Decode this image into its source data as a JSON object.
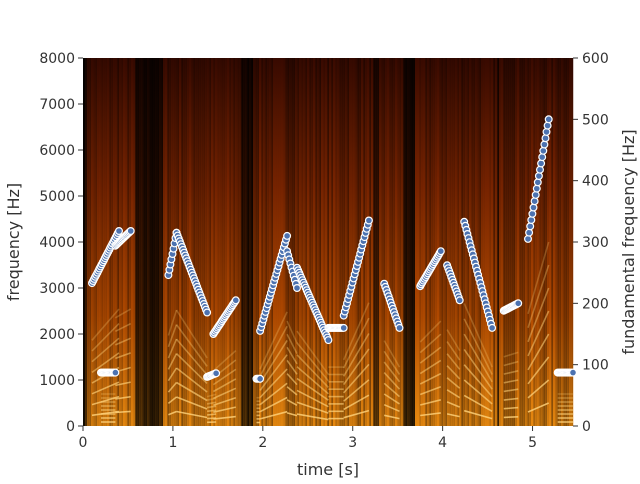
{
  "chart_data": {
    "type": "scatter",
    "title": "",
    "xlabel": "time [s]",
    "ylabel": "frequency [Hz]",
    "y2label": "fundamental frequency [Hz]",
    "xlim": [
      0,
      5.45
    ],
    "ylim": [
      0,
      8000
    ],
    "y2lim": [
      0,
      600
    ],
    "xticks": [
      0,
      1,
      2,
      3,
      4,
      5
    ],
    "yticks": [
      0,
      1000,
      2000,
      3000,
      4000,
      5000,
      6000,
      7000,
      8000
    ],
    "y2ticks": [
      0,
      100,
      200,
      300,
      400,
      500,
      600
    ],
    "grid": false,
    "background": "spectrogram",
    "colormap": "afmhot",
    "marker_color": "#4c72b0",
    "marker_edge_color": "#ffffff",
    "voiced_segments": [
      {
        "t": [
          0.1,
          0.4
        ],
        "f0": [
          233,
          318
        ]
      },
      {
        "t": [
          0.2,
          0.36
        ],
        "f0": [
          87,
          87
        ]
      },
      {
        "t": [
          0.36,
          0.53
        ],
        "f0": [
          294,
          318
        ]
      },
      {
        "t": [
          0.95,
          1.04
        ],
        "f0": [
          246,
          315
        ]
      },
      {
        "t": [
          1.04,
          1.38
        ],
        "f0": [
          315,
          185
        ]
      },
      {
        "t": [
          1.38,
          1.48
        ],
        "f0": [
          80,
          86
        ]
      },
      {
        "t": [
          1.45,
          1.7
        ],
        "f0": [
          150,
          205
        ]
      },
      {
        "t": [
          1.93,
          1.97
        ],
        "f0": [
          77,
          77
        ]
      },
      {
        "t": [
          1.97,
          2.27
        ],
        "f0": [
          155,
          310
        ]
      },
      {
        "t": [
          2.27,
          2.38
        ],
        "f0": [
          285,
          225
        ]
      },
      {
        "t": [
          2.38,
          2.73
        ],
        "f0": [
          258,
          140
        ]
      },
      {
        "t": [
          2.73,
          2.9
        ],
        "f0": [
          160,
          160
        ]
      },
      {
        "t": [
          2.9,
          3.18
        ],
        "f0": [
          180,
          335
        ]
      },
      {
        "t": [
          3.35,
          3.52
        ],
        "f0": [
          232,
          160
        ]
      },
      {
        "t": [
          3.75,
          3.98
        ],
        "f0": [
          228,
          285
        ]
      },
      {
        "t": [
          4.05,
          4.19
        ],
        "f0": [
          262,
          205
        ]
      },
      {
        "t": [
          4.24,
          4.55
        ],
        "f0": [
          333,
          160
        ]
      },
      {
        "t": [
          4.68,
          4.84
        ],
        "f0": [
          188,
          200
        ]
      },
      {
        "t": [
          4.95,
          5.18
        ],
        "f0": [
          305,
          500
        ]
      },
      {
        "t": [
          5.28,
          5.45
        ],
        "f0": [
          87,
          87
        ]
      }
    ]
  }
}
